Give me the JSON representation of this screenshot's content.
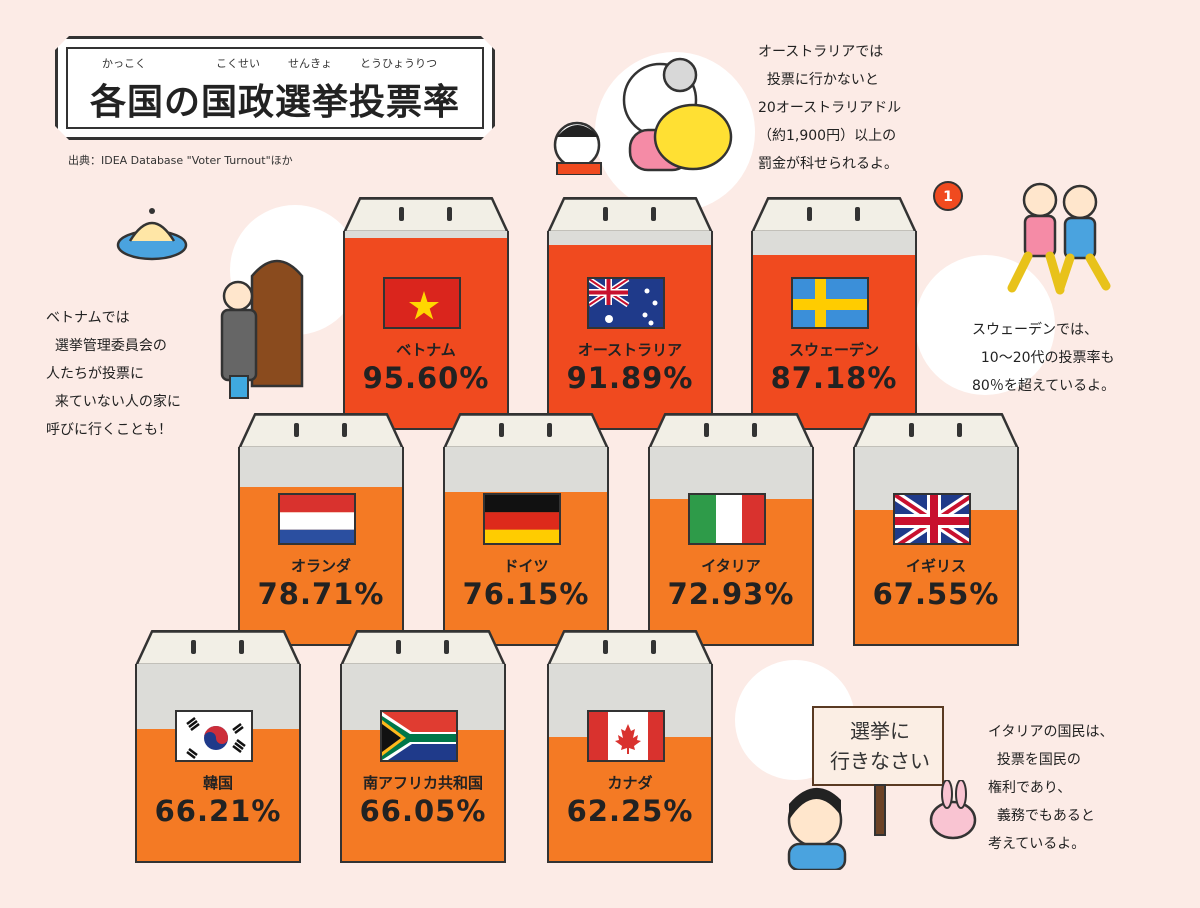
{
  "title": {
    "text": "各国の国政選挙投票率",
    "ruby": [
      "かっこく",
      "こくせい",
      "せんきょ",
      "とうひょうりつ"
    ]
  },
  "source": "出典：IDEA Database \"Voter Turnout\"ほか",
  "colors": {
    "row1": "#f04a1f",
    "row2": "#f47a24",
    "row3": "#f47a24",
    "empty": "#dcdcd8",
    "background": "#fcebe6"
  },
  "chart_data": {
    "type": "bar",
    "title": "各国の国政選挙投票率",
    "categories": [
      "ベトナム",
      "オーストラリア",
      "スウェーデン",
      "オランダ",
      "ドイツ",
      "イタリア",
      "イギリス",
      "韓国",
      "南アフリカ共和国",
      "カナダ"
    ],
    "values": [
      95.6,
      91.89,
      87.18,
      78.71,
      76.15,
      72.93,
      67.55,
      66.21,
      66.05,
      62.25
    ],
    "labels": [
      "95.60%",
      "91.89%",
      "87.18%",
      "78.71%",
      "76.15%",
      "72.93%",
      "67.55%",
      "66.21%",
      "66.05%",
      "62.25%"
    ],
    "flags": [
      "vietnam-flag-icon",
      "australia-flag-icon",
      "sweden-flag-icon",
      "netherlands-flag-icon",
      "germany-flag-icon",
      "italy-flag-icon",
      "uk-flag-icon",
      "korea-flag-icon",
      "south-africa-flag-icon",
      "canada-flag-icon"
    ],
    "ylim": [
      0,
      100
    ]
  },
  "notes": {
    "australia": "オーストラリアでは\n  投票に行かないと\n20オーストラリアドル\n（約1,900円）以上の\n罰金が科せられるよ。",
    "vietnam": "ベトナムでは\n  選挙管理委員会の\n人たちが投票に\n  来ていない人の家に\n呼びに行くことも！",
    "sweden": "スウェーデンでは、\n  10～20代の投票率も\n80％を超えているよ。",
    "italy": "イタリアの国民は、\n  投票を国民の\n権利であり、\n  義務でもあると\n考えているよ。"
  },
  "sign": {
    "text": "選挙に\n行きなさい"
  },
  "badge": "1"
}
